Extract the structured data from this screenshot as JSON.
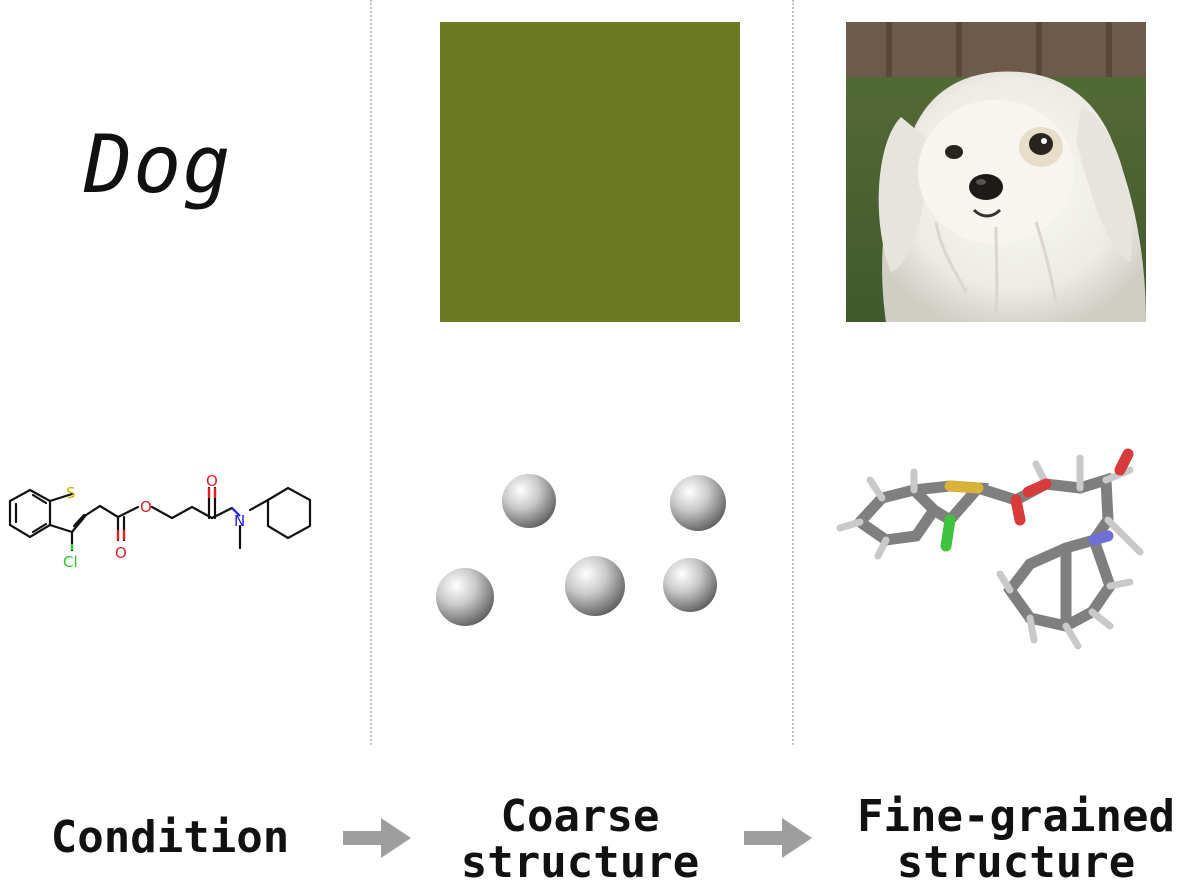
{
  "condition_text": "Dog",
  "labels": {
    "condition": "Condition",
    "coarse_line1": "Coarse",
    "coarse_line2": "structure",
    "fine_line1": "Fine-grained",
    "fine_line2": "structure"
  },
  "atom_labels": {
    "sulfur": "S",
    "chlorine": "Cl",
    "oxygen": "O",
    "nitrogen": "N"
  },
  "colors": {
    "coarse_square": "#6b7a21",
    "arrow": "#9e9e9e"
  }
}
